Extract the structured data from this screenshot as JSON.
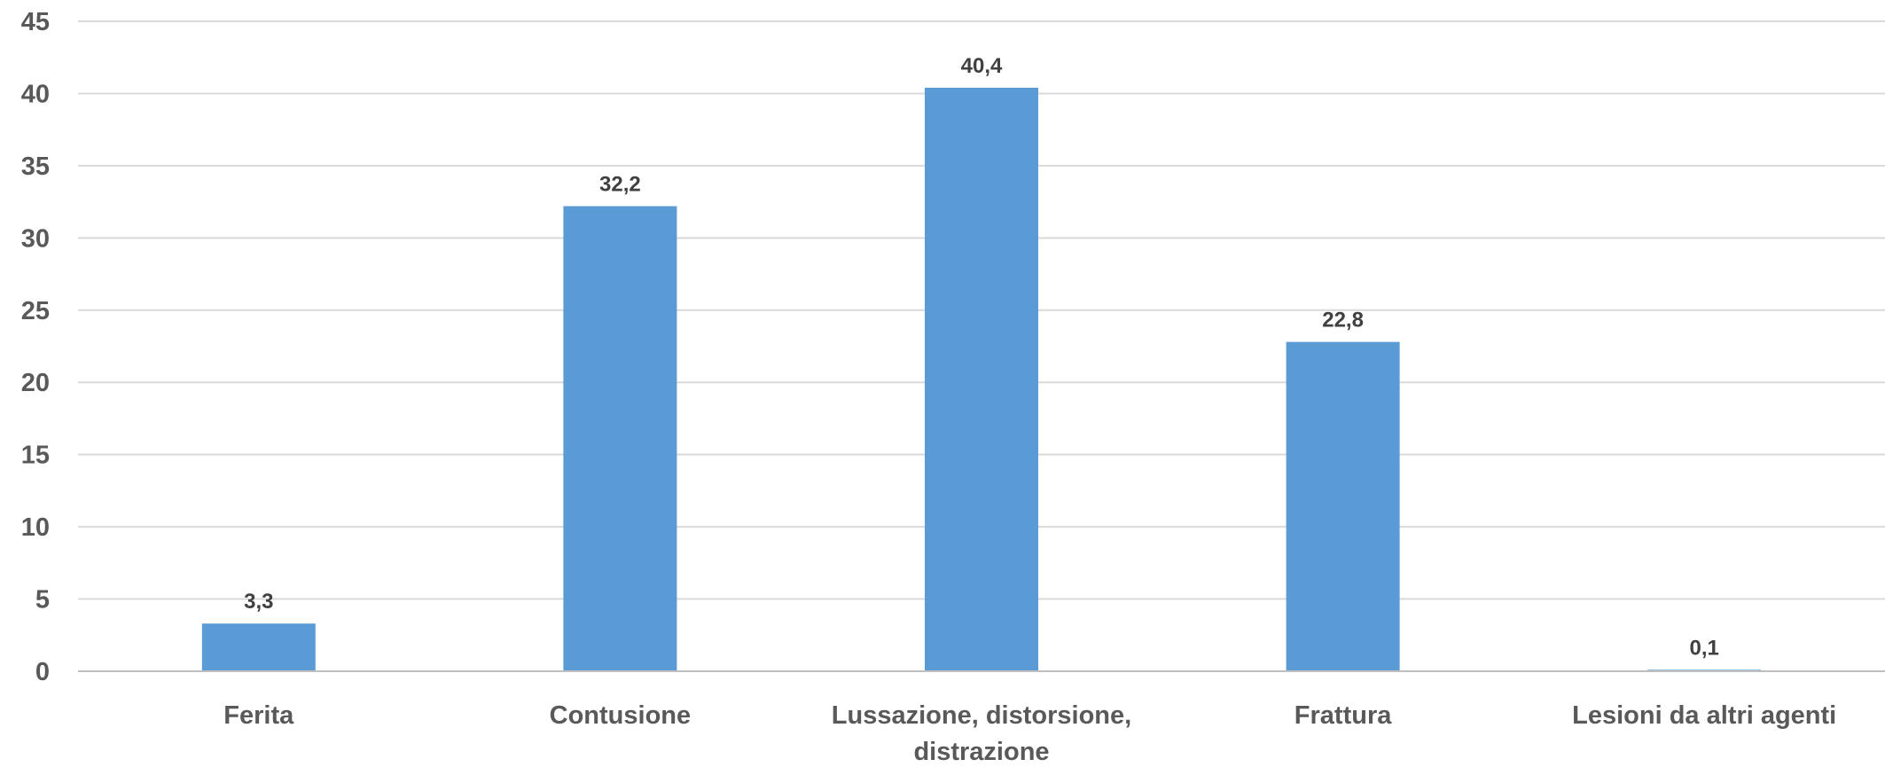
{
  "chart_data": {
    "type": "bar",
    "categories": [
      [
        "Ferita"
      ],
      [
        "Contusione"
      ],
      [
        "Lussazione, distorsione,",
        "distrazione"
      ],
      [
        "Frattura"
      ],
      [
        "Lesioni da altri agenti"
      ]
    ],
    "values": [
      3.3,
      32.2,
      40.4,
      22.8,
      0.1
    ],
    "value_labels": [
      "3,3",
      "32,2",
      "40,4",
      "22,8",
      "0,1"
    ],
    "title": "",
    "xlabel": "",
    "ylabel": "",
    "ylim": [
      0,
      45
    ],
    "yticks": [
      "0",
      "5",
      "10",
      "15",
      "20",
      "25",
      "30",
      "35",
      "40",
      "45"
    ],
    "grid": true,
    "legend": "none",
    "colors": {
      "bar": "#5b9bd5"
    }
  }
}
